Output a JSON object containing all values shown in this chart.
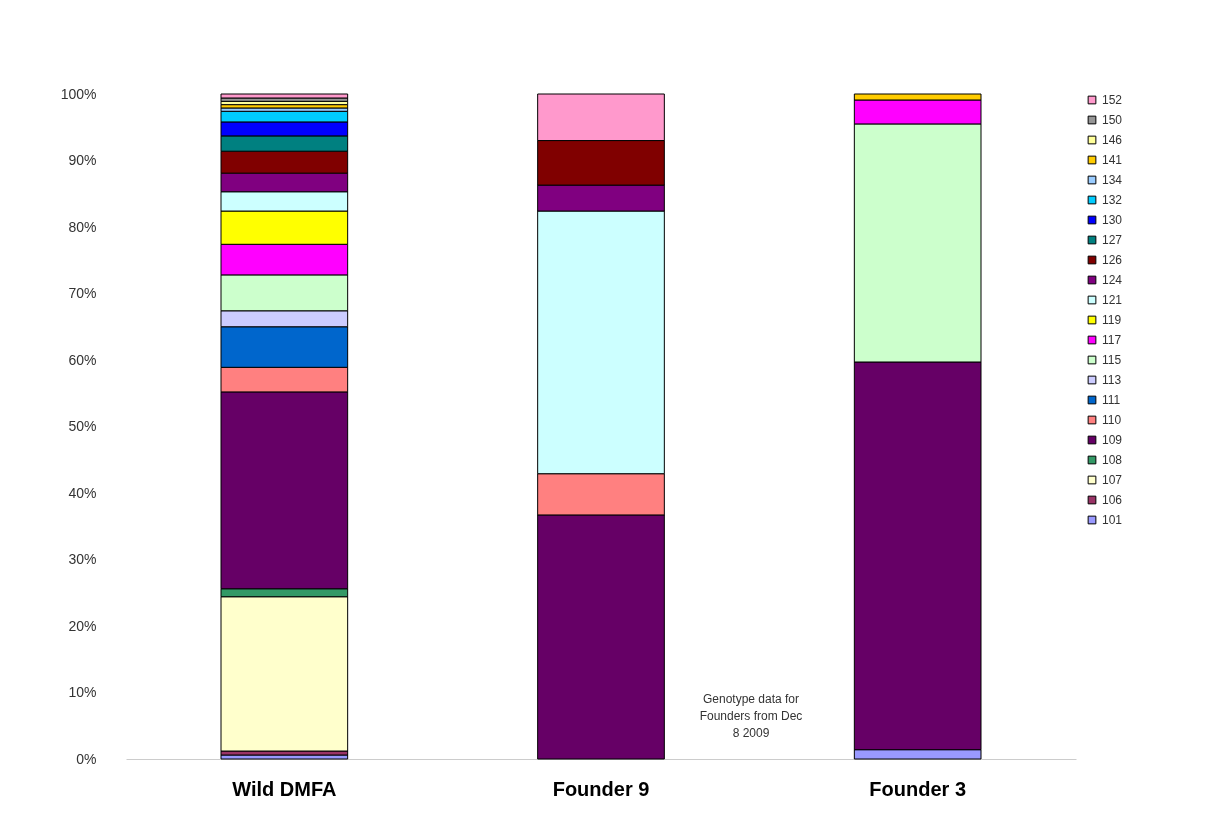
{
  "chart_data": {
    "type": "bar",
    "stacked": true,
    "categories": [
      "Wild DMFA",
      "Founder 9",
      "Founder 3"
    ],
    "ylim": [
      0,
      100
    ],
    "yticks": [
      {
        "value": 0,
        "label": "0%"
      },
      {
        "value": 10,
        "label": "10%"
      },
      {
        "value": 20,
        "label": "20%"
      },
      {
        "value": 30,
        "label": "30%"
      },
      {
        "value": 40,
        "label": "40%"
      },
      {
        "value": 50,
        "label": "50%"
      },
      {
        "value": 60,
        "label": "60%"
      },
      {
        "value": 70,
        "label": "70%"
      },
      {
        "value": 80,
        "label": "80%"
      },
      {
        "value": 90,
        "label": "90%"
      },
      {
        "value": 100,
        "label": "100%"
      }
    ],
    "legend": "right",
    "grid": false,
    "annotations": [
      "Genotype data for Founders from Dec 8 2009"
    ],
    "series": [
      {
        "name": "101",
        "color": "#9999ff",
        "values": [
          0.6,
          null,
          1.4
        ]
      },
      {
        "name": "106",
        "color": "#993366",
        "values": [
          0.6,
          null,
          null
        ]
      },
      {
        "name": "107",
        "color": "#ffffcc",
        "values": [
          23.2,
          null,
          null
        ]
      },
      {
        "name": "108",
        "color": "#339966",
        "values": [
          1.2,
          null,
          null
        ]
      },
      {
        "name": "109",
        "color": "#660066",
        "values": [
          29.6,
          36.7,
          58.3
        ]
      },
      {
        "name": "110",
        "color": "#ff8080",
        "values": [
          3.7,
          6.2,
          null
        ]
      },
      {
        "name": "111",
        "color": "#0066cc",
        "values": [
          6.1,
          null,
          null
        ]
      },
      {
        "name": "113",
        "color": "#ccccff",
        "values": [
          2.4,
          null,
          null
        ]
      },
      {
        "name": "115",
        "color": "#ccffcc",
        "values": [
          5.4,
          null,
          35.8
        ]
      },
      {
        "name": "117",
        "color": "#ff00ff",
        "values": [
          4.6,
          null,
          3.6
        ]
      },
      {
        "name": "119",
        "color": "#ffff00",
        "values": [
          5.0,
          null,
          null
        ]
      },
      {
        "name": "121",
        "color": "#ccffff",
        "values": [
          2.9,
          39.5,
          null
        ]
      },
      {
        "name": "124",
        "color": "#800080",
        "values": [
          2.8,
          3.9,
          null
        ]
      },
      {
        "name": "126",
        "color": "#800000",
        "values": [
          3.3,
          6.7,
          null
        ]
      },
      {
        "name": "127",
        "color": "#008080",
        "values": [
          2.3,
          null,
          null
        ]
      },
      {
        "name": "130",
        "color": "#0000ff",
        "values": [
          2.1,
          null,
          null
        ]
      },
      {
        "name": "132",
        "color": "#00ccff",
        "values": [
          1.6,
          null,
          null
        ]
      },
      {
        "name": "134",
        "color": "#99ccff",
        "values": [
          0.5,
          null,
          null
        ]
      },
      {
        "name": "141",
        "color": "#ffcc00",
        "values": [
          0.5,
          null,
          0.9
        ]
      },
      {
        "name": "146",
        "color": "#ffff99",
        "values": [
          0.5,
          null,
          null
        ]
      },
      {
        "name": "150",
        "color": "#969696",
        "values": [
          0.5,
          null,
          null
        ]
      },
      {
        "name": "152",
        "color": "#ff99cc",
        "values": [
          0.6,
          7.0,
          null
        ]
      }
    ]
  }
}
